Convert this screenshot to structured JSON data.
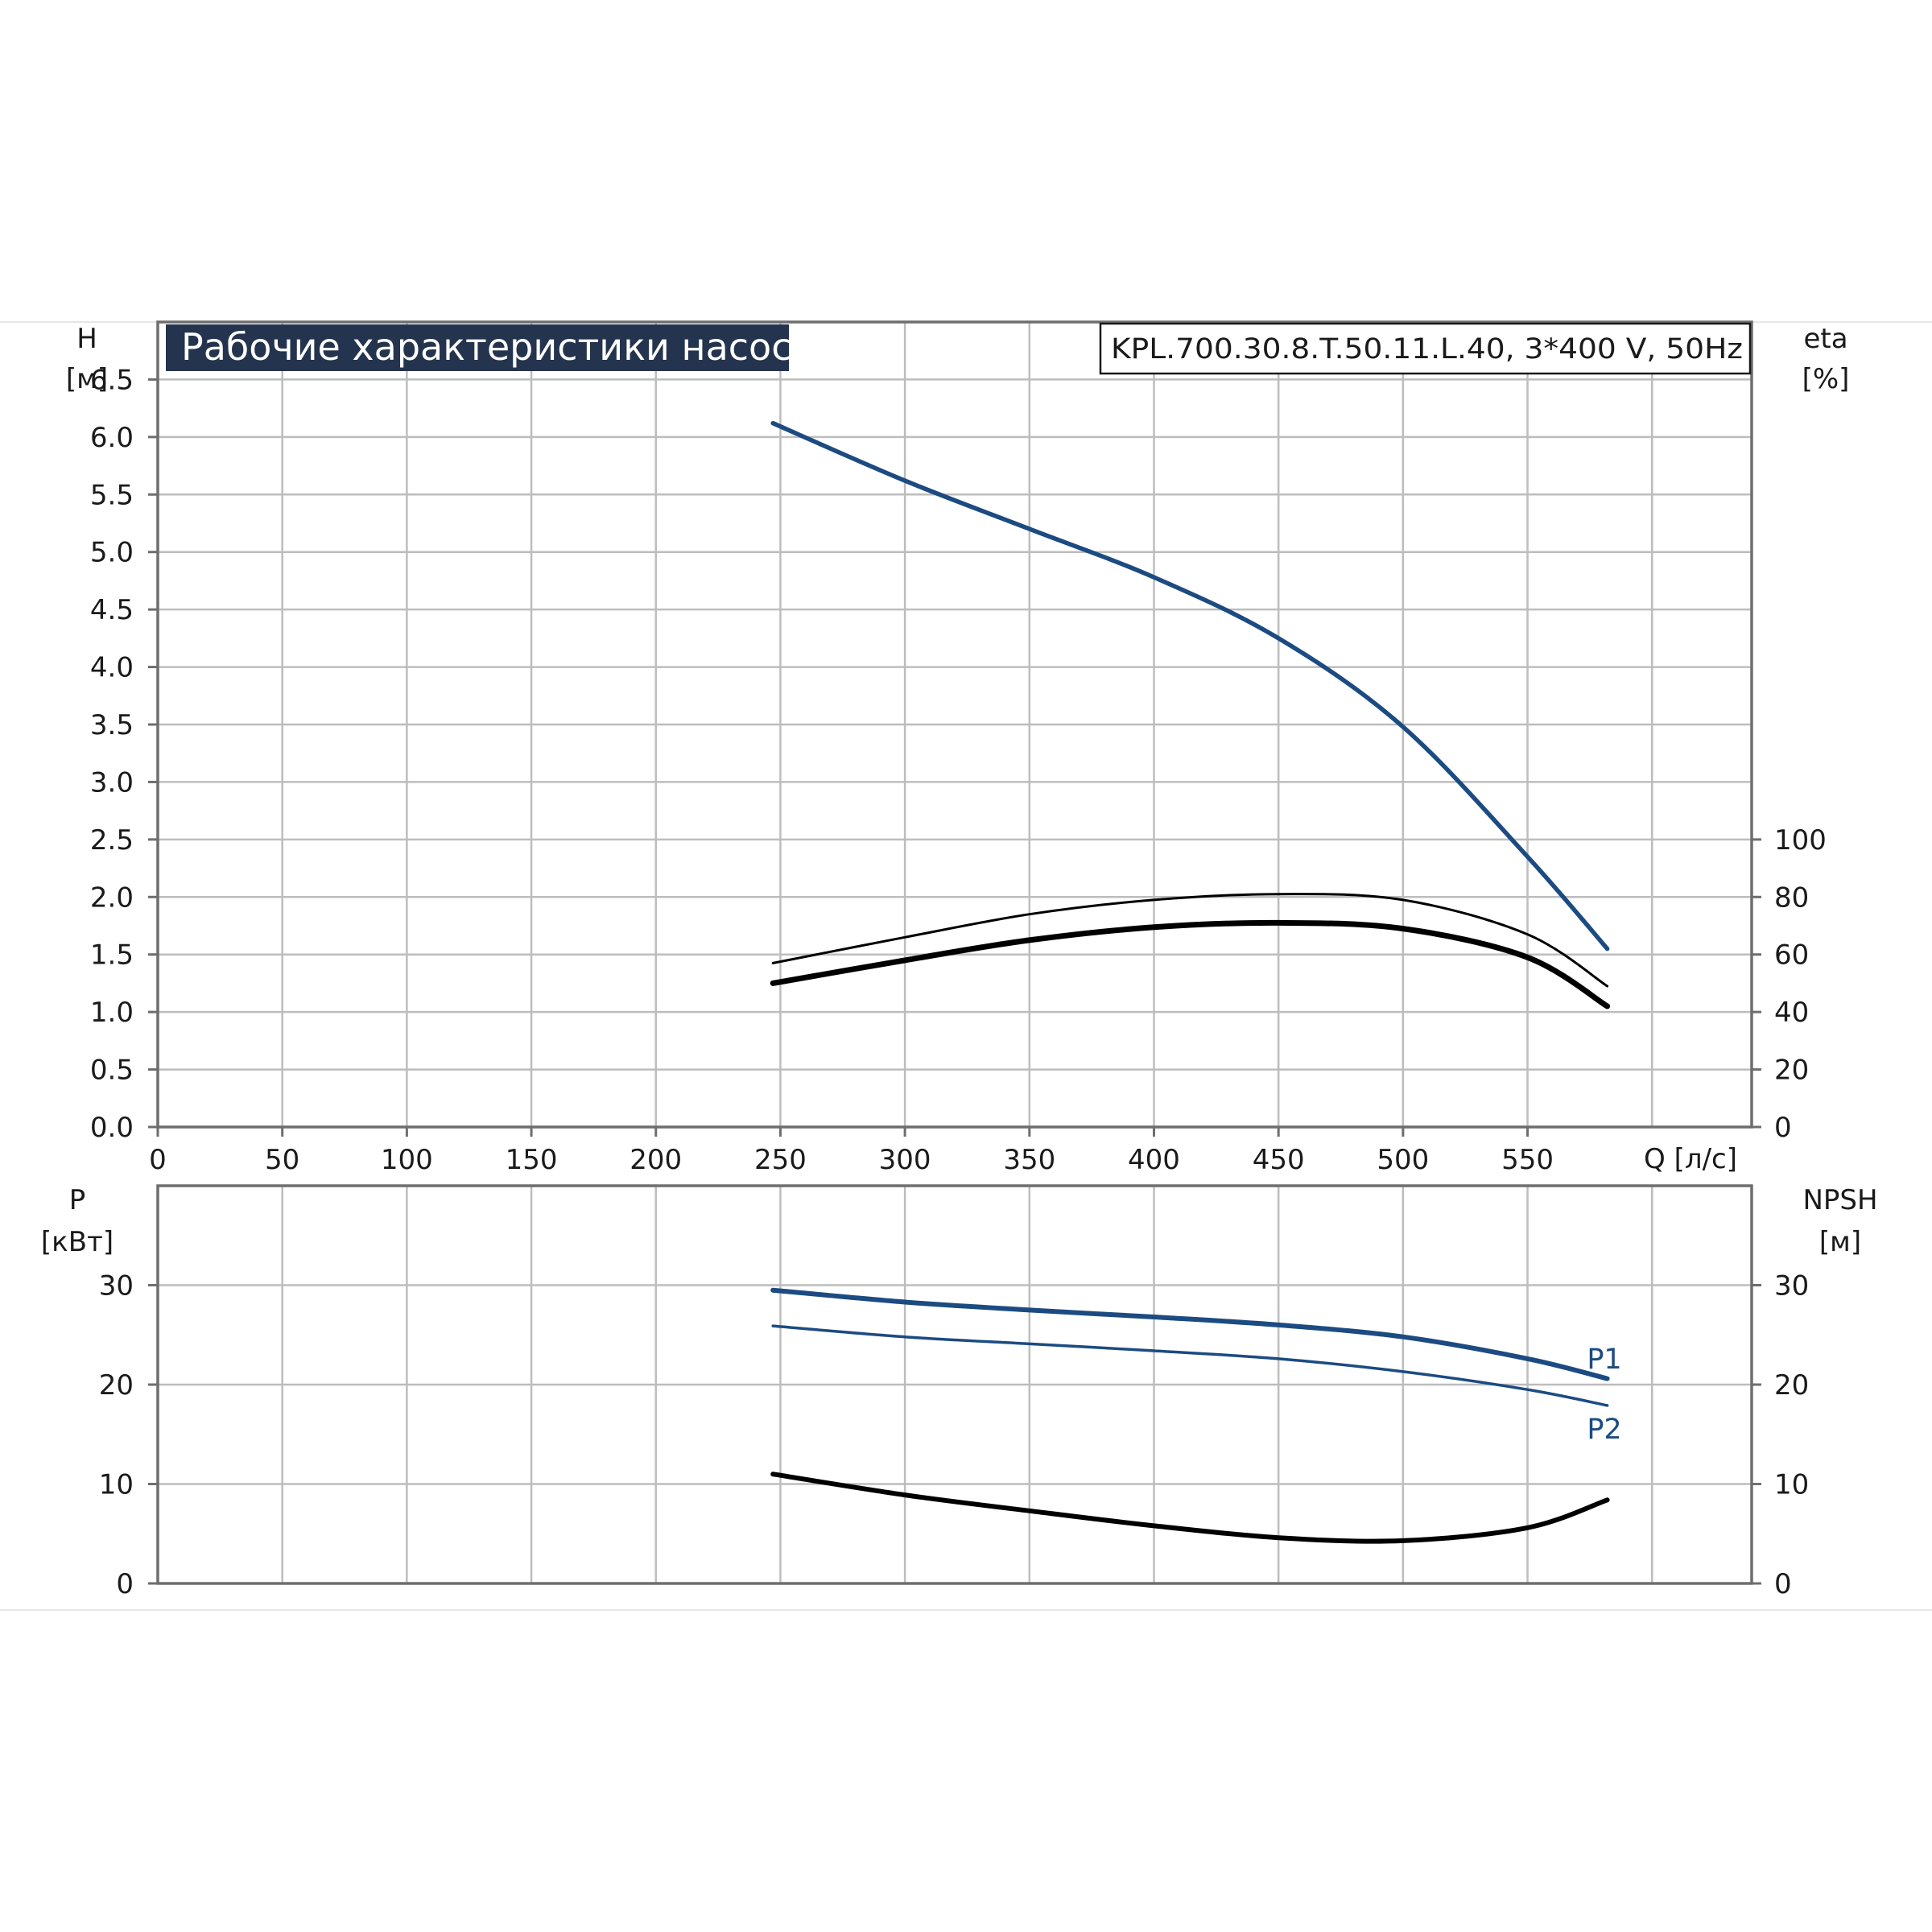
{
  "chart_data": [
    {
      "type": "line",
      "title": "Рабочие характеристики насоса",
      "subtitle": "KPL.700.30.8.T.50.11.L.40, 3*400 V, 50Hz",
      "x_axis": {
        "label": "Q [л/с]",
        "range": [
          0,
          640
        ],
        "ticks": [
          0,
          50,
          100,
          150,
          200,
          250,
          300,
          350,
          400,
          450,
          500,
          550
        ]
      },
      "y_axis_left": {
        "label_line1": "H",
        "label_line2": "[м]",
        "range": [
          0,
          7.0
        ],
        "ticks": [
          "0.0",
          "0.5",
          "1.0",
          "1.5",
          "2.0",
          "2.5",
          "3.0",
          "3.5",
          "4.0",
          "4.5",
          "5.0",
          "5.5",
          "6.0",
          "6.5"
        ]
      },
      "y_axis_right": {
        "label_line1": "eta",
        "label_line2": "[%]",
        "range": [
          0,
          100
        ],
        "ticks": [
          "0",
          "20",
          "40",
          "60",
          "80",
          "100"
        ]
      },
      "grid": true,
      "series": [
        {
          "axis": "left",
          "color": "#1c4b82",
          "width": 5.5,
          "x": [
            247,
            300,
            350,
            400,
            450,
            500,
            550,
            582
          ],
          "y": [
            6.12,
            5.62,
            5.2,
            4.78,
            4.25,
            3.48,
            2.35,
            1.55
          ]
        },
        {
          "axis": "right",
          "color": "#000000",
          "width": 3,
          "x": [
            247,
            300,
            350,
            400,
            450,
            500,
            550,
            582
          ],
          "y": [
            57,
            66,
            74,
            79,
            81,
            79,
            67,
            49
          ]
        },
        {
          "axis": "right",
          "color": "#000000",
          "width": 7,
          "x": [
            247,
            300,
            350,
            400,
            450,
            500,
            550,
            582
          ],
          "y": [
            50,
            58,
            65,
            69.5,
            71,
            69,
            59,
            42
          ]
        }
      ]
    },
    {
      "type": "line",
      "x_axis": {
        "range": [
          0,
          640
        ]
      },
      "y_axis_left": {
        "label_line1": "P",
        "label_line2": "[кВт]",
        "range": [
          0,
          40
        ],
        "ticks": [
          "0",
          "10",
          "20",
          "30"
        ]
      },
      "y_axis_right": {
        "label_line1": "NPSH",
        "label_line2": "[м]",
        "range": [
          0,
          40
        ],
        "ticks": [
          "0",
          "10",
          "20",
          "30"
        ]
      },
      "grid": true,
      "series": [
        {
          "name": "P1",
          "axis": "left",
          "color": "#1c4b82",
          "width": 6,
          "x": [
            247,
            300,
            350,
            400,
            450,
            500,
            550,
            582
          ],
          "y": [
            29.5,
            28.3,
            27.5,
            26.8,
            26.0,
            24.8,
            22.6,
            20.6
          ]
        },
        {
          "name": "P2",
          "axis": "left",
          "color": "#1c4b82",
          "width": 3.5,
          "x": [
            247,
            300,
            350,
            400,
            450,
            500,
            550,
            582
          ],
          "y": [
            25.9,
            24.8,
            24.1,
            23.4,
            22.6,
            21.3,
            19.5,
            17.9
          ]
        },
        {
          "axis": "right",
          "color": "#000000",
          "width": 6,
          "x": [
            247,
            300,
            350,
            400,
            450,
            500,
            550,
            582
          ],
          "y": [
            11.0,
            8.9,
            7.3,
            5.8,
            4.6,
            4.3,
            5.6,
            8.4
          ]
        }
      ]
    }
  ]
}
